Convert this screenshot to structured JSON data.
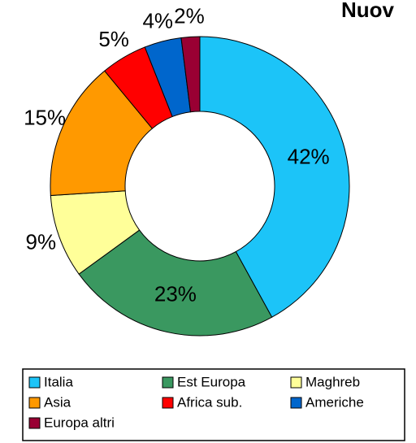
{
  "chart_data": {
    "type": "donut",
    "title": "Nuov",
    "categories": [
      "Italia",
      "Est Europa",
      "Maghreb",
      "Asia",
      "Africa sub.",
      "Americhe",
      "Europa altri"
    ],
    "values": [
      42,
      23,
      9,
      15,
      5,
      4,
      2
    ],
    "value_labels": [
      "42%",
      "23%",
      "9%",
      "15%",
      "5%",
      "4%",
      "2%"
    ],
    "colors": [
      "#1cc4f8",
      "#3a9860",
      "#ffff99",
      "#ff9900",
      "#ff0000",
      "#0066cc",
      "#990033"
    ],
    "legend": "bottom"
  }
}
